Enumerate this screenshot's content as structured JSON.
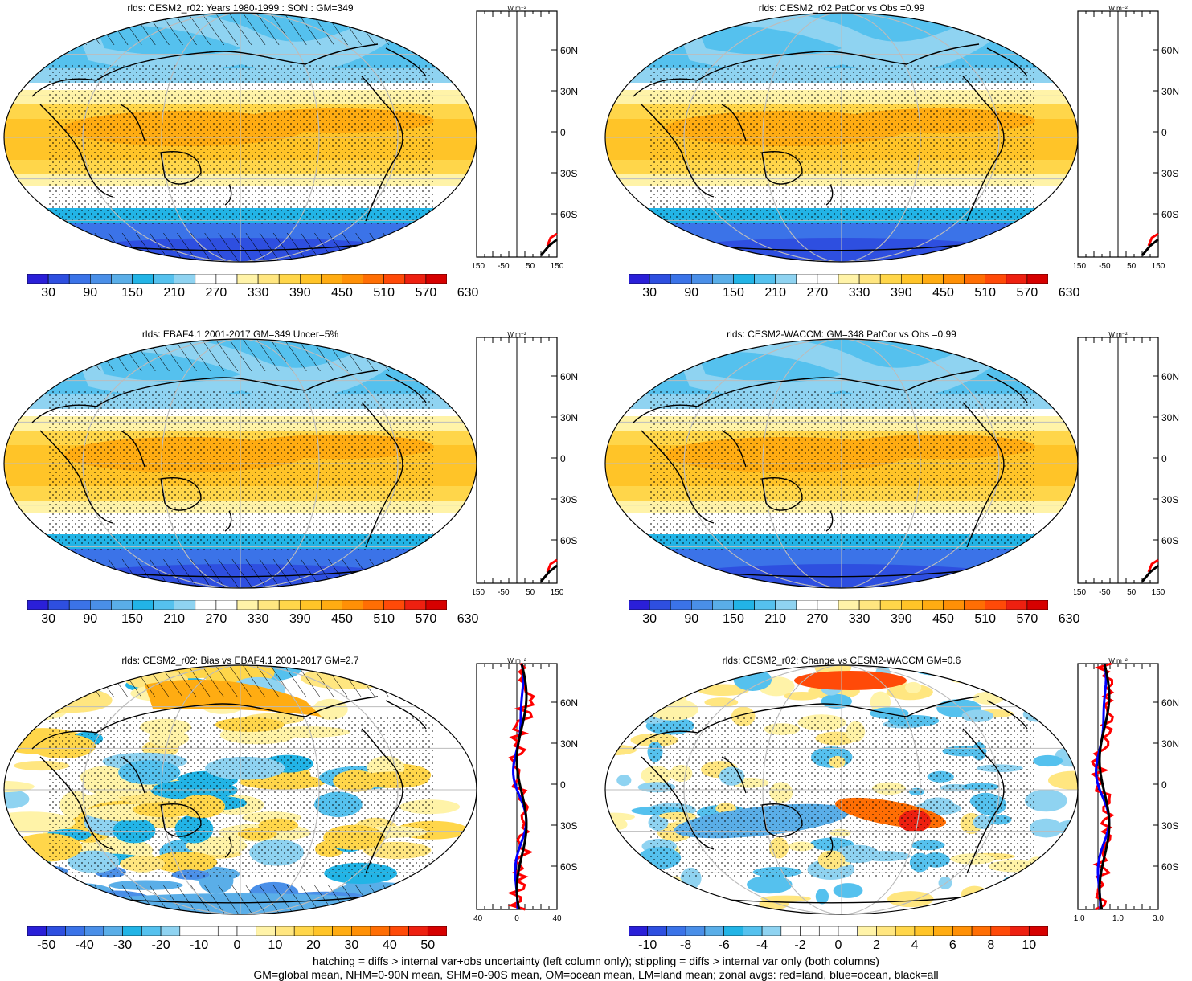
{
  "panels": [
    {
      "id": "p1",
      "title": "rlds: CESM2_r02: Years 1980-1999 : SON : GM=349",
      "type": "mean",
      "hatch": true,
      "cbar": {
        "colors": "mean",
        "labels": [
          "30",
          "90",
          "150",
          "210",
          "270",
          "330",
          "390",
          "450",
          "510",
          "570",
          "630"
        ]
      },
      "zonal_ticks": [
        "-150",
        "-50",
        "50",
        "150"
      ]
    },
    {
      "id": "p2",
      "title": "rlds: CESM2_r02 PatCor vs Obs =0.99",
      "type": "mean",
      "hatch": false,
      "cbar": {
        "colors": "mean",
        "labels": [
          "30",
          "90",
          "150",
          "210",
          "270",
          "330",
          "390",
          "450",
          "510",
          "570",
          "630"
        ]
      },
      "zonal_ticks": [
        "-150",
        "-50",
        "50",
        "150"
      ]
    },
    {
      "id": "p3",
      "title": "rlds: EBAF4.1 2001-2017 GM=349 Uncer=5%",
      "type": "mean",
      "hatch": true,
      "cbar": {
        "colors": "mean",
        "labels": [
          "30",
          "90",
          "150",
          "210",
          "270",
          "330",
          "390",
          "450",
          "510",
          "570",
          "630"
        ]
      },
      "zonal_ticks": [
        "-150",
        "-50",
        "50",
        "150"
      ]
    },
    {
      "id": "p4",
      "title": "rlds: CESM2-WACCM: GM=348 PatCor vs Obs =0.99",
      "type": "mean",
      "hatch": false,
      "cbar": {
        "colors": "mean",
        "labels": [
          "30",
          "90",
          "150",
          "210",
          "270",
          "330",
          "390",
          "450",
          "510",
          "570",
          "630"
        ]
      },
      "zonal_ticks": [
        "-150",
        "-50",
        "50",
        "150"
      ]
    },
    {
      "id": "p5",
      "title": "rlds: CESM2_r02: Bias vs EBAF4.1 2001-2017  GM=2.7",
      "type": "bias",
      "hatch": true,
      "cbar": {
        "colors": "diff",
        "labels": [
          "-50",
          "-40",
          "-30",
          "-20",
          "-10",
          "0",
          "10",
          "20",
          "30",
          "40",
          "50"
        ]
      },
      "zonal_ticks": [
        "-40",
        "0",
        "40"
      ]
    },
    {
      "id": "p6",
      "title": "rlds: CESM2_r02: Change vs CESM2-WACCM GM=0.6",
      "type": "change",
      "hatch": false,
      "cbar": {
        "colors": "diff",
        "labels": [
          "-10",
          "-8",
          "-6",
          "-4",
          "-2",
          "0",
          "2",
          "4",
          "6",
          "8",
          "10"
        ]
      },
      "zonal_ticks": [
        "-1.0",
        "1.0",
        "3.0"
      ]
    }
  ],
  "zonal_units": "W m⁻²",
  "lat_labels": [
    "60N",
    "30N",
    "0",
    "30S",
    "60S"
  ],
  "colors": {
    "mean": [
      "#2a1fd8",
      "#2e4fe0",
      "#3b73e8",
      "#4a8fe8",
      "#5aaee8",
      "#22b4e6",
      "#55c1ee",
      "#8fd3f1",
      "#ffffff",
      "#ffffff",
      "#fff3a8",
      "#ffe680",
      "#ffd64a",
      "#ffc428",
      "#ffac12",
      "#ff9006",
      "#ff6e04",
      "#ff4a08",
      "#ee2010",
      "#d60000"
    ],
    "diff": [
      "#2a1fd8",
      "#2e4fe0",
      "#3b73e8",
      "#4a8fe8",
      "#5aaee8",
      "#22b4e6",
      "#55c1ee",
      "#8fd3f1",
      "#ffffff",
      "#ffffff",
      "#ffffff",
      "#ffffff",
      "#fff3a8",
      "#ffe680",
      "#ffd64a",
      "#ffc428",
      "#ffac12",
      "#ff9006",
      "#ff6e04",
      "#ff4a08",
      "#ee2010",
      "#d60000"
    ],
    "land": "#ff0000",
    "ocean": "#0000ff",
    "all": "#000000"
  },
  "footer": {
    "line1": "hatching = diffs > internal var+obs uncertainty (left column only); stippling = diffs > internal var only (both columns)",
    "line2": "GM=global mean, NHM=0-90N mean, SHM=0-90S mean, OM=ocean mean, LM=land mean; zonal avgs: red=land, blue=ocean, black=all"
  }
}
